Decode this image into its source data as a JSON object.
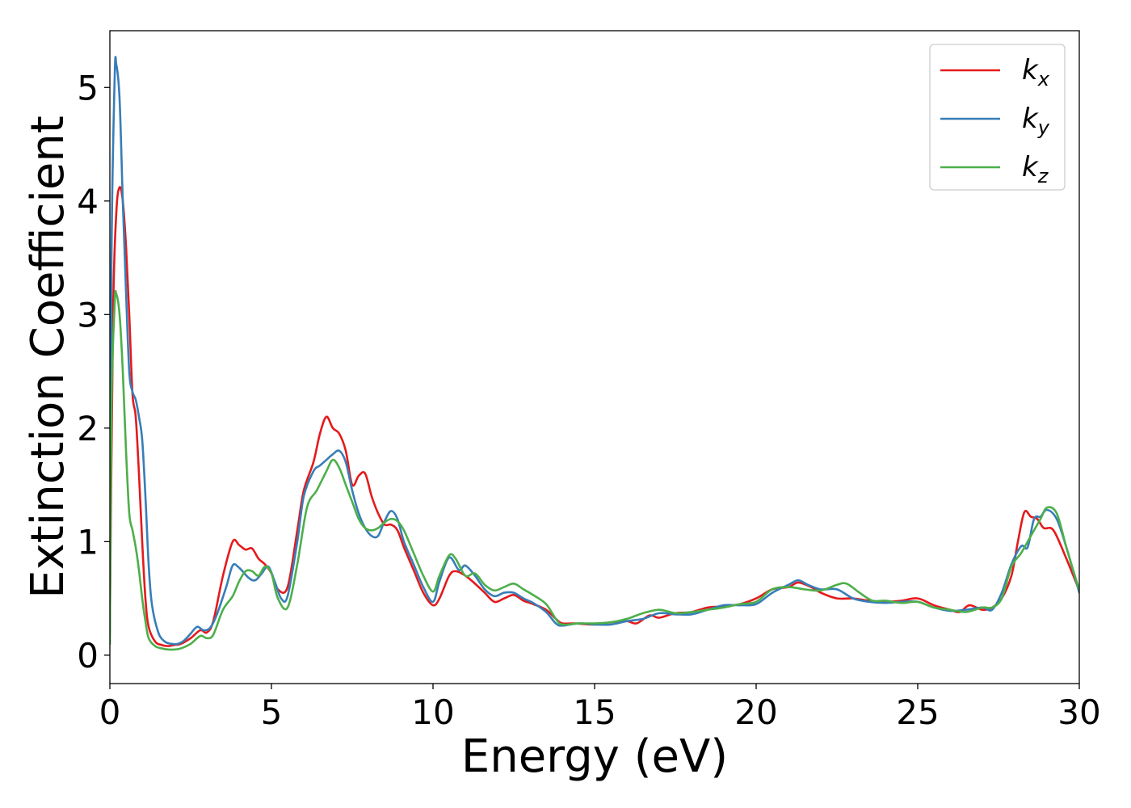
{
  "chart_data": {
    "type": "line",
    "title": "",
    "xlabel": "Energy (eV)",
    "ylabel": "Extinction Coefficient",
    "xlim": [
      0,
      30
    ],
    "ylim": [
      -0.25,
      5.5
    ],
    "xticks": [
      0,
      5,
      10,
      15,
      20,
      25,
      30
    ],
    "yticks": [
      0,
      1,
      2,
      3,
      4,
      5
    ],
    "grid": false,
    "legend_position": "top-right",
    "series": [
      {
        "name": "k",
        "subscript": "x",
        "color": "#e41a1c",
        "points": [
          [
            0,
            0.3
          ],
          [
            0.1,
            3.0
          ],
          [
            0.2,
            3.9
          ],
          [
            0.3,
            4.12
          ],
          [
            0.4,
            4.0
          ],
          [
            0.5,
            3.6
          ],
          [
            0.6,
            3.0
          ],
          [
            0.7,
            2.3
          ],
          [
            0.8,
            2.1
          ],
          [
            0.9,
            1.6
          ],
          [
            1.0,
            1.0
          ],
          [
            1.1,
            0.5
          ],
          [
            1.2,
            0.25
          ],
          [
            1.4,
            0.12
          ],
          [
            1.6,
            0.09
          ],
          [
            1.8,
            0.08
          ],
          [
            2.0,
            0.09
          ],
          [
            2.2,
            0.1
          ],
          [
            2.5,
            0.15
          ],
          [
            2.8,
            0.22
          ],
          [
            3.0,
            0.2
          ],
          [
            3.2,
            0.3
          ],
          [
            3.5,
            0.7
          ],
          [
            3.8,
            1.0
          ],
          [
            4.0,
            0.97
          ],
          [
            4.2,
            0.93
          ],
          [
            4.4,
            0.94
          ],
          [
            4.6,
            0.85
          ],
          [
            4.8,
            0.8
          ],
          [
            5.0,
            0.72
          ],
          [
            5.2,
            0.58
          ],
          [
            5.5,
            0.6
          ],
          [
            5.8,
            1.1
          ],
          [
            6.0,
            1.45
          ],
          [
            6.3,
            1.7
          ],
          [
            6.5,
            1.95
          ],
          [
            6.7,
            2.1
          ],
          [
            6.9,
            2.0
          ],
          [
            7.1,
            1.95
          ],
          [
            7.3,
            1.8
          ],
          [
            7.5,
            1.5
          ],
          [
            7.7,
            1.58
          ],
          [
            7.9,
            1.6
          ],
          [
            8.1,
            1.4
          ],
          [
            8.3,
            1.25
          ],
          [
            8.5,
            1.15
          ],
          [
            8.7,
            1.15
          ],
          [
            8.9,
            1.1
          ],
          [
            9.1,
            0.95
          ],
          [
            9.4,
            0.75
          ],
          [
            9.7,
            0.55
          ],
          [
            10.0,
            0.44
          ],
          [
            10.2,
            0.5
          ],
          [
            10.5,
            0.7
          ],
          [
            10.7,
            0.74
          ],
          [
            11.0,
            0.7
          ],
          [
            11.3,
            0.63
          ],
          [
            11.6,
            0.55
          ],
          [
            11.9,
            0.47
          ],
          [
            12.2,
            0.5
          ],
          [
            12.5,
            0.53
          ],
          [
            12.8,
            0.48
          ],
          [
            13.1,
            0.45
          ],
          [
            13.5,
            0.4
          ],
          [
            13.8,
            0.32
          ],
          [
            14.0,
            0.28
          ],
          [
            14.4,
            0.28
          ],
          [
            15.0,
            0.27
          ],
          [
            15.5,
            0.29
          ],
          [
            16.0,
            0.3
          ],
          [
            16.3,
            0.28
          ],
          [
            16.7,
            0.35
          ],
          [
            17.0,
            0.33
          ],
          [
            17.5,
            0.37
          ],
          [
            18.0,
            0.38
          ],
          [
            18.5,
            0.42
          ],
          [
            19.0,
            0.43
          ],
          [
            19.5,
            0.45
          ],
          [
            20.0,
            0.5
          ],
          [
            20.5,
            0.58
          ],
          [
            21.0,
            0.6
          ],
          [
            21.3,
            0.64
          ],
          [
            21.7,
            0.6
          ],
          [
            22.0,
            0.55
          ],
          [
            22.5,
            0.5
          ],
          [
            23.0,
            0.5
          ],
          [
            23.5,
            0.48
          ],
          [
            24.0,
            0.47
          ],
          [
            24.5,
            0.48
          ],
          [
            25.0,
            0.5
          ],
          [
            25.5,
            0.44
          ],
          [
            26.0,
            0.4
          ],
          [
            26.3,
            0.38
          ],
          [
            26.6,
            0.44
          ],
          [
            27.0,
            0.4
          ],
          [
            27.3,
            0.42
          ],
          [
            27.6,
            0.5
          ],
          [
            27.9,
            0.7
          ],
          [
            28.1,
            1.0
          ],
          [
            28.3,
            1.26
          ],
          [
            28.5,
            1.22
          ],
          [
            28.7,
            1.2
          ],
          [
            28.9,
            1.12
          ],
          [
            29.2,
            1.1
          ],
          [
            29.6,
            0.85
          ],
          [
            30,
            0.57
          ]
        ]
      },
      {
        "name": "k",
        "subscript": "y",
        "color": "#377eb8",
        "points": [
          [
            0,
            0.2
          ],
          [
            0.05,
            3.5
          ],
          [
            0.15,
            5.1
          ],
          [
            0.2,
            5.2
          ],
          [
            0.3,
            4.9
          ],
          [
            0.4,
            4.0
          ],
          [
            0.5,
            3.2
          ],
          [
            0.6,
            2.5
          ],
          [
            0.7,
            2.32
          ],
          [
            0.8,
            2.25
          ],
          [
            0.9,
            2.1
          ],
          [
            1.0,
            1.9
          ],
          [
            1.1,
            1.4
          ],
          [
            1.2,
            0.8
          ],
          [
            1.3,
            0.45
          ],
          [
            1.5,
            0.2
          ],
          [
            1.7,
            0.12
          ],
          [
            1.9,
            0.1
          ],
          [
            2.1,
            0.1
          ],
          [
            2.3,
            0.13
          ],
          [
            2.5,
            0.19
          ],
          [
            2.7,
            0.25
          ],
          [
            2.9,
            0.22
          ],
          [
            3.1,
            0.24
          ],
          [
            3.3,
            0.35
          ],
          [
            3.6,
            0.6
          ],
          [
            3.8,
            0.79
          ],
          [
            4.0,
            0.77
          ],
          [
            4.3,
            0.68
          ],
          [
            4.5,
            0.66
          ],
          [
            4.7,
            0.72
          ],
          [
            4.9,
            0.78
          ],
          [
            5.1,
            0.65
          ],
          [
            5.3,
            0.5
          ],
          [
            5.5,
            0.52
          ],
          [
            5.8,
            1.0
          ],
          [
            6.0,
            1.4
          ],
          [
            6.3,
            1.62
          ],
          [
            6.5,
            1.67
          ],
          [
            6.7,
            1.72
          ],
          [
            6.9,
            1.77
          ],
          [
            7.1,
            1.8
          ],
          [
            7.3,
            1.7
          ],
          [
            7.5,
            1.45
          ],
          [
            7.7,
            1.25
          ],
          [
            7.9,
            1.12
          ],
          [
            8.1,
            1.05
          ],
          [
            8.3,
            1.05
          ],
          [
            8.5,
            1.18
          ],
          [
            8.7,
            1.27
          ],
          [
            8.9,
            1.2
          ],
          [
            9.1,
            1.0
          ],
          [
            9.4,
            0.8
          ],
          [
            9.7,
            0.6
          ],
          [
            10.0,
            0.47
          ],
          [
            10.2,
            0.65
          ],
          [
            10.5,
            0.86
          ],
          [
            10.8,
            0.75
          ],
          [
            11.0,
            0.79
          ],
          [
            11.3,
            0.7
          ],
          [
            11.6,
            0.58
          ],
          [
            11.9,
            0.52
          ],
          [
            12.2,
            0.55
          ],
          [
            12.5,
            0.55
          ],
          [
            12.8,
            0.5
          ],
          [
            13.1,
            0.46
          ],
          [
            13.5,
            0.38
          ],
          [
            13.8,
            0.28
          ],
          [
            14.0,
            0.26
          ],
          [
            14.5,
            0.28
          ],
          [
            15.0,
            0.27
          ],
          [
            15.5,
            0.27
          ],
          [
            16.0,
            0.3
          ],
          [
            16.5,
            0.32
          ],
          [
            17.0,
            0.37
          ],
          [
            17.5,
            0.36
          ],
          [
            18.0,
            0.36
          ],
          [
            18.5,
            0.4
          ],
          [
            19.0,
            0.44
          ],
          [
            19.5,
            0.44
          ],
          [
            20.0,
            0.45
          ],
          [
            20.5,
            0.55
          ],
          [
            21.0,
            0.62
          ],
          [
            21.3,
            0.66
          ],
          [
            21.6,
            0.62
          ],
          [
            22.0,
            0.58
          ],
          [
            22.5,
            0.58
          ],
          [
            23.0,
            0.5
          ],
          [
            23.5,
            0.47
          ],
          [
            24.0,
            0.46
          ],
          [
            24.5,
            0.47
          ],
          [
            25.0,
            0.47
          ],
          [
            25.5,
            0.42
          ],
          [
            26.0,
            0.39
          ],
          [
            26.5,
            0.4
          ],
          [
            27.0,
            0.42
          ],
          [
            27.3,
            0.4
          ],
          [
            27.6,
            0.55
          ],
          [
            27.9,
            0.8
          ],
          [
            28.2,
            0.96
          ],
          [
            28.4,
            0.95
          ],
          [
            28.6,
            1.2
          ],
          [
            28.8,
            1.22
          ],
          [
            29.0,
            1.28
          ],
          [
            29.3,
            1.2
          ],
          [
            29.6,
            0.95
          ],
          [
            30,
            0.55
          ]
        ]
      },
      {
        "name": "k",
        "subscript": "z",
        "color": "#4daf4a",
        "points": [
          [
            0,
            0.1
          ],
          [
            0.05,
            2.2
          ],
          [
            0.15,
            3.1
          ],
          [
            0.2,
            3.18
          ],
          [
            0.3,
            3.0
          ],
          [
            0.4,
            2.5
          ],
          [
            0.5,
            1.8
          ],
          [
            0.6,
            1.25
          ],
          [
            0.7,
            1.1
          ],
          [
            0.8,
            0.95
          ],
          [
            0.9,
            0.75
          ],
          [
            1.0,
            0.5
          ],
          [
            1.1,
            0.3
          ],
          [
            1.2,
            0.15
          ],
          [
            1.4,
            0.08
          ],
          [
            1.6,
            0.06
          ],
          [
            1.8,
            0.05
          ],
          [
            2.0,
            0.05
          ],
          [
            2.2,
            0.06
          ],
          [
            2.5,
            0.1
          ],
          [
            2.8,
            0.17
          ],
          [
            3.0,
            0.15
          ],
          [
            3.2,
            0.18
          ],
          [
            3.5,
            0.4
          ],
          [
            3.8,
            0.52
          ],
          [
            4.0,
            0.65
          ],
          [
            4.2,
            0.74
          ],
          [
            4.4,
            0.74
          ],
          [
            4.6,
            0.7
          ],
          [
            4.8,
            0.78
          ],
          [
            5.0,
            0.72
          ],
          [
            5.2,
            0.5
          ],
          [
            5.5,
            0.42
          ],
          [
            5.8,
            0.8
          ],
          [
            6.1,
            1.3
          ],
          [
            6.4,
            1.45
          ],
          [
            6.7,
            1.62
          ],
          [
            6.9,
            1.72
          ],
          [
            7.1,
            1.65
          ],
          [
            7.3,
            1.5
          ],
          [
            7.5,
            1.35
          ],
          [
            7.7,
            1.2
          ],
          [
            7.9,
            1.12
          ],
          [
            8.1,
            1.1
          ],
          [
            8.3,
            1.12
          ],
          [
            8.5,
            1.17
          ],
          [
            8.7,
            1.2
          ],
          [
            8.9,
            1.18
          ],
          [
            9.1,
            1.1
          ],
          [
            9.4,
            0.9
          ],
          [
            9.7,
            0.7
          ],
          [
            10.0,
            0.56
          ],
          [
            10.2,
            0.7
          ],
          [
            10.5,
            0.88
          ],
          [
            10.7,
            0.85
          ],
          [
            11.0,
            0.7
          ],
          [
            11.3,
            0.72
          ],
          [
            11.6,
            0.62
          ],
          [
            11.9,
            0.57
          ],
          [
            12.2,
            0.6
          ],
          [
            12.5,
            0.63
          ],
          [
            12.8,
            0.58
          ],
          [
            13.1,
            0.53
          ],
          [
            13.5,
            0.45
          ],
          [
            13.8,
            0.32
          ],
          [
            14.0,
            0.27
          ],
          [
            14.5,
            0.28
          ],
          [
            15.0,
            0.28
          ],
          [
            15.5,
            0.29
          ],
          [
            16.0,
            0.32
          ],
          [
            16.5,
            0.37
          ],
          [
            17.0,
            0.4
          ],
          [
            17.5,
            0.37
          ],
          [
            18.0,
            0.38
          ],
          [
            18.5,
            0.4
          ],
          [
            19.0,
            0.42
          ],
          [
            19.5,
            0.45
          ],
          [
            20.0,
            0.47
          ],
          [
            20.5,
            0.58
          ],
          [
            21.0,
            0.6
          ],
          [
            21.5,
            0.58
          ],
          [
            22.0,
            0.57
          ],
          [
            22.5,
            0.62
          ],
          [
            22.8,
            0.63
          ],
          [
            23.2,
            0.55
          ],
          [
            23.6,
            0.48
          ],
          [
            24.0,
            0.48
          ],
          [
            24.5,
            0.46
          ],
          [
            25.0,
            0.47
          ],
          [
            25.5,
            0.42
          ],
          [
            26.0,
            0.4
          ],
          [
            26.5,
            0.38
          ],
          [
            27.0,
            0.42
          ],
          [
            27.3,
            0.42
          ],
          [
            27.6,
            0.5
          ],
          [
            27.9,
            0.78
          ],
          [
            28.2,
            0.9
          ],
          [
            28.5,
            1.05
          ],
          [
            28.8,
            1.2
          ],
          [
            29.0,
            1.3
          ],
          [
            29.3,
            1.25
          ],
          [
            29.6,
            0.95
          ],
          [
            30,
            0.57
          ]
        ]
      }
    ]
  }
}
